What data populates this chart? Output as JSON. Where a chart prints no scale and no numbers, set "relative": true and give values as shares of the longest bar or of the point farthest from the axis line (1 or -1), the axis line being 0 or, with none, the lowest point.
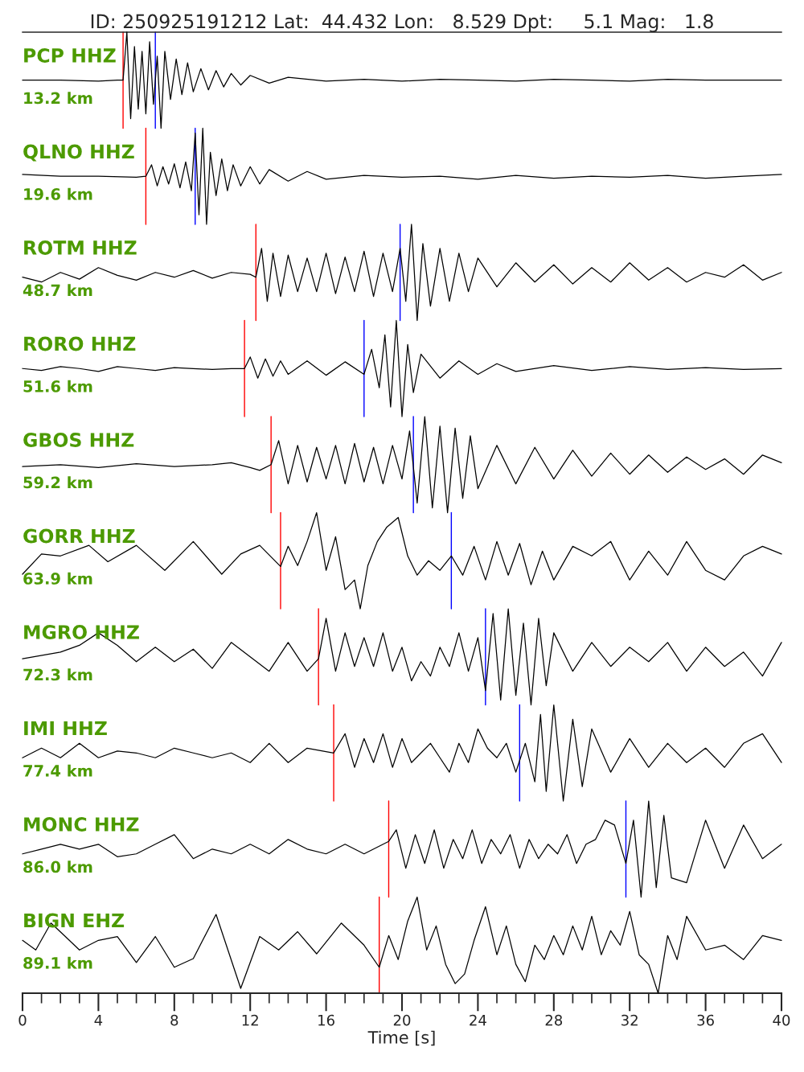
{
  "chart_data": [
    {
      "type": "line",
      "relative": true,
      "title": "ID: 250925191212 Lat:  44.432 Lon:   8.529 Dpt:     5.1 Mag:   1.8",
      "xlim": [
        0,
        40
      ],
      "tick_labels": false,
      "annotations": [
        "PCP HHZ",
        "13.2 km"
      ],
      "ref_lines": [
        {
          "axis": "x",
          "value": 5.3,
          "color": "#ff0000"
        },
        {
          "axis": "x",
          "value": 7.0,
          "color": "#0000ff"
        }
      ],
      "series": [
        {
          "color": "#000000",
          "x": [
            0,
            2,
            4,
            5,
            5.3,
            5.5,
            5.7,
            5.9,
            6.1,
            6.3,
            6.5,
            6.7,
            6.9,
            7.1,
            7.3,
            7.5,
            7.8,
            8.1,
            8.4,
            8.7,
            9,
            9.4,
            9.8,
            10.2,
            10.6,
            11,
            11.5,
            12,
            13,
            14,
            16,
            18,
            20,
            22,
            24,
            26,
            28,
            30,
            32,
            34,
            36,
            38,
            40
          ],
          "values": [
            0.5,
            0.5,
            0.49,
            0.5,
            0.5,
            1.0,
            0.1,
            0.85,
            0.2,
            0.8,
            0.15,
            0.9,
            0.25,
            0.75,
            0.0,
            0.8,
            0.3,
            0.72,
            0.35,
            0.68,
            0.38,
            0.62,
            0.4,
            0.6,
            0.43,
            0.57,
            0.45,
            0.55,
            0.47,
            0.53,
            0.49,
            0.51,
            0.49,
            0.51,
            0.5,
            0.49,
            0.51,
            0.5,
            0.49,
            0.51,
            0.5,
            0.5,
            0.5
          ]
        }
      ]
    },
    {
      "type": "line",
      "relative": true,
      "xlim": [
        0,
        40
      ],
      "tick_labels": false,
      "annotations": [
        "QLNO HHZ",
        "19.6 km"
      ],
      "ref_lines": [
        {
          "axis": "x",
          "value": 6.5,
          "color": "#ff0000"
        },
        {
          "axis": "x",
          "value": 9.1,
          "color": "#0000ff"
        }
      ],
      "series": [
        {
          "color": "#000000",
          "x": [
            0,
            2,
            4,
            6,
            6.5,
            6.8,
            7.1,
            7.4,
            7.7,
            8,
            8.3,
            8.6,
            8.9,
            9.1,
            9.3,
            9.5,
            9.7,
            9.9,
            10.2,
            10.5,
            10.8,
            11.1,
            11.5,
            12,
            12.5,
            13,
            14,
            15,
            16,
            18,
            20,
            22,
            24,
            26,
            28,
            30,
            32,
            34,
            36,
            38,
            40
          ],
          "values": [
            0.52,
            0.5,
            0.5,
            0.49,
            0.5,
            0.62,
            0.4,
            0.6,
            0.42,
            0.63,
            0.38,
            0.65,
            0.35,
            0.95,
            0.1,
            1.0,
            0.0,
            0.75,
            0.3,
            0.68,
            0.35,
            0.62,
            0.4,
            0.6,
            0.42,
            0.57,
            0.45,
            0.55,
            0.47,
            0.51,
            0.49,
            0.5,
            0.47,
            0.51,
            0.48,
            0.5,
            0.49,
            0.51,
            0.48,
            0.5,
            0.52
          ]
        }
      ]
    },
    {
      "type": "line",
      "relative": true,
      "xlim": [
        0,
        40
      ],
      "tick_labels": false,
      "annotations": [
        "ROTM HHZ",
        "48.7 km"
      ],
      "ref_lines": [
        {
          "axis": "x",
          "value": 12.3,
          "color": "#ff0000"
        },
        {
          "axis": "x",
          "value": 19.9,
          "color": "#0000ff"
        }
      ],
      "series": [
        {
          "color": "#000000",
          "x": [
            0,
            1,
            2,
            3,
            4,
            5,
            6,
            7,
            8,
            9,
            10,
            11,
            12,
            12.3,
            12.6,
            12.9,
            13.2,
            13.6,
            14,
            14.5,
            15,
            15.5,
            16,
            16.5,
            17,
            17.5,
            18,
            18.5,
            19,
            19.5,
            19.9,
            20.2,
            20.5,
            20.8,
            21.1,
            21.5,
            22,
            22.5,
            23,
            23.5,
            24,
            25,
            26,
            27,
            28,
            29,
            30,
            31,
            32,
            33,
            34,
            35,
            36,
            37,
            38,
            39,
            40
          ],
          "values": [
            0.45,
            0.4,
            0.5,
            0.43,
            0.55,
            0.47,
            0.42,
            0.5,
            0.45,
            0.52,
            0.44,
            0.5,
            0.48,
            0.45,
            0.75,
            0.2,
            0.7,
            0.25,
            0.68,
            0.3,
            0.65,
            0.3,
            0.7,
            0.28,
            0.66,
            0.3,
            0.72,
            0.25,
            0.7,
            0.3,
            0.75,
            0.2,
            1.0,
            0.0,
            0.8,
            0.15,
            0.75,
            0.2,
            0.7,
            0.3,
            0.65,
            0.35,
            0.6,
            0.4,
            0.58,
            0.38,
            0.55,
            0.4,
            0.6,
            0.42,
            0.55,
            0.4,
            0.5,
            0.45,
            0.58,
            0.42,
            0.5
          ]
        }
      ]
    },
    {
      "type": "line",
      "relative": true,
      "xlim": [
        0,
        40
      ],
      "tick_labels": false,
      "annotations": [
        "RORO HHZ",
        "51.6 km"
      ],
      "ref_lines": [
        {
          "axis": "x",
          "value": 11.7,
          "color": "#ff0000"
        },
        {
          "axis": "x",
          "value": 18.0,
          "color": "#0000ff"
        }
      ],
      "series": [
        {
          "color": "#000000",
          "x": [
            0,
            1,
            2,
            3,
            4,
            5,
            6,
            7,
            8,
            9,
            10,
            11,
            11.7,
            12,
            12.4,
            12.8,
            13.2,
            13.6,
            14,
            15,
            16,
            17,
            18,
            18.4,
            18.8,
            19.1,
            19.4,
            19.7,
            20,
            20.3,
            20.6,
            21,
            22,
            23,
            24,
            25,
            26,
            28,
            30,
            32,
            34,
            36,
            38,
            40
          ],
          "values": [
            0.5,
            0.48,
            0.52,
            0.5,
            0.47,
            0.52,
            0.5,
            0.48,
            0.51,
            0.5,
            0.49,
            0.5,
            0.5,
            0.62,
            0.4,
            0.6,
            0.42,
            0.58,
            0.44,
            0.58,
            0.43,
            0.57,
            0.44,
            0.7,
            0.3,
            0.85,
            0.1,
            1.0,
            0.0,
            0.75,
            0.25,
            0.65,
            0.4,
            0.58,
            0.44,
            0.55,
            0.47,
            0.53,
            0.48,
            0.52,
            0.49,
            0.51,
            0.49,
            0.5
          ]
        }
      ]
    },
    {
      "type": "line",
      "relative": true,
      "xlim": [
        0,
        40
      ],
      "tick_labels": false,
      "annotations": [
        "GBOS HHZ",
        "59.2 km"
      ],
      "ref_lines": [
        {
          "axis": "x",
          "value": 13.1,
          "color": "#ff0000"
        },
        {
          "axis": "x",
          "value": 20.6,
          "color": "#0000ff"
        }
      ],
      "series": [
        {
          "color": "#000000",
          "x": [
            0,
            2,
            4,
            6,
            8,
            10,
            11,
            12,
            12.5,
            13.1,
            13.5,
            14,
            14.5,
            15,
            15.5,
            16,
            16.5,
            17,
            17.5,
            18,
            18.5,
            19,
            19.5,
            20,
            20.4,
            20.8,
            21.2,
            21.6,
            22,
            22.4,
            22.8,
            23.2,
            23.6,
            24,
            25,
            26,
            27,
            28,
            29,
            30,
            31,
            32,
            33,
            34,
            35,
            36,
            37,
            38,
            39,
            40
          ],
          "values": [
            0.48,
            0.5,
            0.47,
            0.51,
            0.48,
            0.5,
            0.52,
            0.47,
            0.44,
            0.5,
            0.75,
            0.3,
            0.7,
            0.32,
            0.68,
            0.35,
            0.7,
            0.3,
            0.72,
            0.32,
            0.68,
            0.3,
            0.7,
            0.35,
            0.85,
            0.1,
            1.0,
            0.05,
            0.9,
            0.0,
            0.88,
            0.15,
            0.8,
            0.25,
            0.7,
            0.3,
            0.68,
            0.35,
            0.65,
            0.38,
            0.62,
            0.4,
            0.6,
            0.42,
            0.58,
            0.45,
            0.56,
            0.4,
            0.6,
            0.52
          ]
        }
      ]
    },
    {
      "type": "line",
      "relative": true,
      "xlim": [
        0,
        40
      ],
      "tick_labels": false,
      "annotations": [
        "GORR HHZ",
        "63.9 km"
      ],
      "ref_lines": [
        {
          "axis": "x",
          "value": 13.6,
          "color": "#ff0000"
        },
        {
          "axis": "x",
          "value": 22.6,
          "color": "#0000ff"
        }
      ],
      "series": [
        {
          "color": "#000000",
          "x": [
            0,
            1,
            2,
            3.5,
            4.5,
            6,
            7.5,
            9,
            10.5,
            11.5,
            12.5,
            13.6,
            14,
            14.5,
            15,
            15.5,
            16,
            16.5,
            17,
            17.5,
            17.8,
            18.2,
            18.7,
            19.2,
            19.8,
            20.3,
            20.8,
            21.4,
            22,
            22.6,
            23.2,
            23.8,
            24.4,
            25,
            25.6,
            26.2,
            26.8,
            27.4,
            28,
            29,
            30,
            31,
            32,
            33,
            34,
            35,
            36,
            37,
            38,
            39,
            40
          ],
          "values": [
            0.36,
            0.57,
            0.55,
            0.66,
            0.49,
            0.66,
            0.4,
            0.7,
            0.36,
            0.57,
            0.66,
            0.44,
            0.65,
            0.45,
            0.7,
            1.0,
            0.4,
            0.75,
            0.2,
            0.3,
            0.0,
            0.45,
            0.7,
            0.85,
            0.95,
            0.55,
            0.35,
            0.5,
            0.4,
            0.55,
            0.35,
            0.65,
            0.3,
            0.7,
            0.35,
            0.68,
            0.25,
            0.6,
            0.3,
            0.65,
            0.55,
            0.7,
            0.3,
            0.6,
            0.35,
            0.7,
            0.4,
            0.3,
            0.55,
            0.65,
            0.57
          ]
        }
      ]
    },
    {
      "type": "line",
      "relative": true,
      "xlim": [
        0,
        40
      ],
      "tick_labels": false,
      "annotations": [
        "MGRO HHZ",
        "72.3 km"
      ],
      "ref_lines": [
        {
          "axis": "x",
          "value": 15.6,
          "color": "#ff0000"
        },
        {
          "axis": "x",
          "value": 24.4,
          "color": "#0000ff"
        }
      ],
      "series": [
        {
          "color": "#000000",
          "x": [
            0,
            2,
            3,
            4,
            5,
            6,
            7,
            8,
            9,
            10,
            11,
            12,
            13,
            14,
            15,
            15.6,
            16,
            16.5,
            17,
            17.5,
            18,
            18.5,
            19,
            19.5,
            20,
            20.5,
            21,
            21.5,
            22,
            22.5,
            23,
            23.5,
            24,
            24.4,
            24.8,
            25.2,
            25.6,
            26,
            26.4,
            26.8,
            27.2,
            27.6,
            28,
            29,
            30,
            31,
            32,
            33,
            34,
            35,
            36,
            37,
            38,
            39,
            40
          ],
          "values": [
            0.48,
            0.55,
            0.62,
            0.75,
            0.62,
            0.45,
            0.6,
            0.45,
            0.58,
            0.38,
            0.65,
            0.5,
            0.35,
            0.65,
            0.35,
            0.48,
            0.9,
            0.35,
            0.75,
            0.4,
            0.7,
            0.4,
            0.75,
            0.35,
            0.6,
            0.25,
            0.45,
            0.3,
            0.6,
            0.4,
            0.75,
            0.35,
            0.7,
            0.15,
            0.95,
            0.05,
            1.0,
            0.1,
            0.85,
            0.0,
            0.9,
            0.2,
            0.75,
            0.35,
            0.65,
            0.4,
            0.6,
            0.45,
            0.65,
            0.35,
            0.6,
            0.4,
            0.55,
            0.3,
            0.65
          ]
        }
      ]
    },
    {
      "type": "line",
      "relative": true,
      "xlim": [
        0,
        40
      ],
      "tick_labels": false,
      "annotations": [
        "IMI HHZ",
        "77.4 km"
      ],
      "ref_lines": [
        {
          "axis": "x",
          "value": 16.4,
          "color": "#ff0000"
        },
        {
          "axis": "x",
          "value": 26.2,
          "color": "#0000ff"
        }
      ],
      "series": [
        {
          "color": "#000000",
          "x": [
            0,
            1,
            2,
            3,
            4,
            5,
            6,
            7,
            8,
            9,
            10,
            11,
            12,
            13,
            14,
            15,
            16.4,
            17,
            17.5,
            18,
            18.5,
            19,
            19.5,
            20,
            20.5,
            21,
            21.5,
            22,
            22.5,
            23,
            23.5,
            24,
            24.5,
            25,
            25.5,
            26,
            26.5,
            27,
            27.3,
            27.6,
            28,
            28.5,
            29,
            29.5,
            30,
            31,
            32,
            33,
            34,
            35,
            36,
            37,
            38,
            39,
            40
          ],
          "values": [
            0.45,
            0.55,
            0.45,
            0.6,
            0.45,
            0.52,
            0.5,
            0.45,
            0.55,
            0.5,
            0.45,
            0.5,
            0.4,
            0.6,
            0.4,
            0.55,
            0.5,
            0.7,
            0.35,
            0.65,
            0.4,
            0.7,
            0.35,
            0.65,
            0.4,
            0.5,
            0.6,
            0.45,
            0.3,
            0.6,
            0.4,
            0.75,
            0.55,
            0.45,
            0.6,
            0.3,
            0.6,
            0.2,
            0.9,
            0.1,
            1.0,
            0.0,
            0.85,
            0.15,
            0.75,
            0.3,
            0.65,
            0.35,
            0.6,
            0.4,
            0.55,
            0.35,
            0.6,
            0.7,
            0.4
          ]
        }
      ]
    },
    {
      "type": "line",
      "relative": true,
      "xlim": [
        0,
        40
      ],
      "tick_labels": false,
      "annotations": [
        "MONC HHZ",
        "86.0 km"
      ],
      "ref_lines": [
        {
          "axis": "x",
          "value": 19.3,
          "color": "#ff0000"
        },
        {
          "axis": "x",
          "value": 31.8,
          "color": "#0000ff"
        }
      ],
      "series": [
        {
          "color": "#000000",
          "x": [
            0,
            1,
            2,
            3,
            4,
            5,
            6,
            7,
            8,
            9,
            10,
            11,
            12,
            13,
            14,
            15,
            16,
            17,
            18,
            19.3,
            19.7,
            20.2,
            20.7,
            21.2,
            21.7,
            22.2,
            22.7,
            23.2,
            23.7,
            24.2,
            24.7,
            25.2,
            25.7,
            26.2,
            26.7,
            27.2,
            27.7,
            28.2,
            28.7,
            29.2,
            29.7,
            30.2,
            30.7,
            31.2,
            31.8,
            32.2,
            32.6,
            33,
            33.4,
            33.8,
            34.2,
            35,
            36,
            37,
            38,
            39,
            40
          ],
          "values": [
            0.45,
            0.5,
            0.55,
            0.5,
            0.55,
            0.42,
            0.45,
            0.55,
            0.65,
            0.4,
            0.5,
            0.45,
            0.55,
            0.45,
            0.6,
            0.5,
            0.45,
            0.55,
            0.45,
            0.58,
            0.7,
            0.3,
            0.65,
            0.35,
            0.7,
            0.3,
            0.6,
            0.4,
            0.7,
            0.35,
            0.6,
            0.45,
            0.65,
            0.3,
            0.6,
            0.4,
            0.55,
            0.45,
            0.65,
            0.35,
            0.55,
            0.6,
            0.8,
            0.75,
            0.35,
            0.8,
            0.0,
            1.0,
            0.1,
            0.85,
            0.2,
            0.15,
            0.8,
            0.3,
            0.75,
            0.4,
            0.55
          ]
        }
      ]
    },
    {
      "type": "line",
      "relative": true,
      "xlim": [
        0,
        40
      ],
      "tick_labels": "x",
      "xlabel": "Time [s]",
      "annotations": [
        "BIGN EHZ",
        "89.1 km"
      ],
      "xticks": [
        0,
        {
          "value": 1,
          "label": null
        },
        {
          "value": 2,
          "label": null
        },
        {
          "value": 3,
          "label": null
        },
        4,
        {
          "value": 5,
          "label": null
        },
        {
          "value": 6,
          "label": null
        },
        {
          "value": 7,
          "label": null
        },
        8,
        {
          "value": 9,
          "label": null
        },
        {
          "value": 10,
          "label": null
        },
        {
          "value": 11,
          "label": null
        },
        12,
        {
          "value": 13,
          "label": null
        },
        {
          "value": 14,
          "label": null
        },
        {
          "value": 15,
          "label": null
        },
        16,
        {
          "value": 17,
          "label": null
        },
        {
          "value": 18,
          "label": null
        },
        {
          "value": 19,
          "label": null
        },
        20,
        {
          "value": 21,
          "label": null
        },
        {
          "value": 22,
          "label": null
        },
        {
          "value": 23,
          "label": null
        },
        24,
        {
          "value": 25,
          "label": null
        },
        {
          "value": 26,
          "label": null
        },
        {
          "value": 27,
          "label": null
        },
        28,
        {
          "value": 29,
          "label": null
        },
        {
          "value": 30,
          "label": null
        },
        {
          "value": 31,
          "label": null
        },
        32,
        {
          "value": 33,
          "label": null
        },
        {
          "value": 34,
          "label": null
        },
        {
          "value": 35,
          "label": null
        },
        36,
        {
          "value": 37,
          "label": null
        },
        {
          "value": 38,
          "label": null
        },
        {
          "value": 39,
          "label": null
        },
        40
      ],
      "ref_lines": [
        {
          "axis": "x",
          "value": 18.8,
          "color": "#ff0000"
        }
      ],
      "series": [
        {
          "color": "#000000",
          "x": [
            0,
            0.7,
            1.5,
            2.2,
            3,
            4,
            5,
            6,
            7,
            8,
            9,
            10.2,
            11.5,
            12.5,
            13.5,
            14.5,
            15.5,
            16.8,
            18,
            18.8,
            19.3,
            19.8,
            20.3,
            20.8,
            21.3,
            21.8,
            22.3,
            22.8,
            23.3,
            23.8,
            24.4,
            25,
            25.5,
            26,
            26.5,
            27,
            27.5,
            28,
            28.5,
            29,
            29.5,
            30,
            30.5,
            31,
            31.5,
            32,
            32.5,
            33,
            33.5,
            34,
            34.5,
            35,
            36,
            37,
            38,
            39,
            40
          ],
          "values": [
            0.55,
            0.45,
            0.73,
            0.6,
            0.45,
            0.55,
            0.59,
            0.32,
            0.59,
            0.27,
            0.36,
            0.82,
            0.05,
            0.59,
            0.45,
            0.64,
            0.41,
            0.73,
            0.5,
            0.27,
            0.6,
            0.35,
            0.75,
            1.0,
            0.45,
            0.7,
            0.3,
            0.1,
            0.2,
            0.55,
            0.9,
            0.4,
            0.7,
            0.3,
            0.12,
            0.5,
            0.35,
            0.6,
            0.4,
            0.7,
            0.45,
            0.8,
            0.4,
            0.65,
            0.5,
            0.85,
            0.4,
            0.3,
            0.0,
            0.6,
            0.35,
            0.8,
            0.45,
            0.5,
            0.35,
            0.6,
            0.55
          ]
        }
      ]
    }
  ]
}
